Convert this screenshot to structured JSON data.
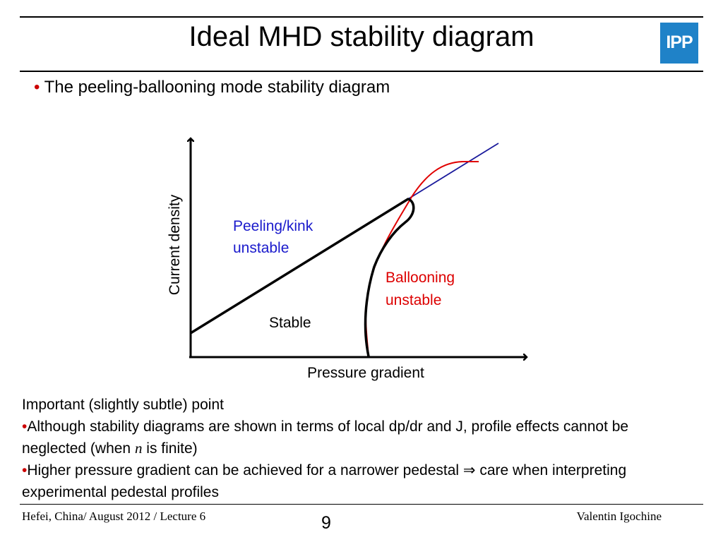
{
  "slide": {
    "title": "Ideal MHD stability diagram",
    "logo_text": "IPP",
    "subtitle": "The peeling-ballooning mode stability diagram"
  },
  "diagram": {
    "x_axis_label": "Pressure gradient",
    "y_axis_label": "Current density",
    "region_peeling": [
      "Peeling/kink",
      "unstable"
    ],
    "region_ballooning": [
      "Ballooning",
      "unstable"
    ],
    "region_stable": "Stable",
    "colors": {
      "axes": "#000000",
      "boundary": "#000000",
      "peeling_line": "#1a1a9c",
      "ballooning_curve": "#e00000",
      "peeling_text": "#1a1acc",
      "ballooning_text": "#dd0000"
    }
  },
  "notes": {
    "heading": "Important (slightly subtle) point",
    "bullet1_part1": "Although stability diagrams are shown in terms of local dp/dr and J, profile effects cannot be neglected (when ",
    "bullet1_n": "n",
    "bullet1_part2": " is finite)",
    "bullet2_part1": "Higher pressure gradient can be achieved for a narrower pedestal ",
    "bullet2_arrow": "⇒",
    "bullet2_part2": " care when interpreting experimental pedestal profiles"
  },
  "footer": {
    "left": "Hefei, China/ August 2012 / Lecture 6",
    "page": "9",
    "right": "Valentin Igochine"
  }
}
